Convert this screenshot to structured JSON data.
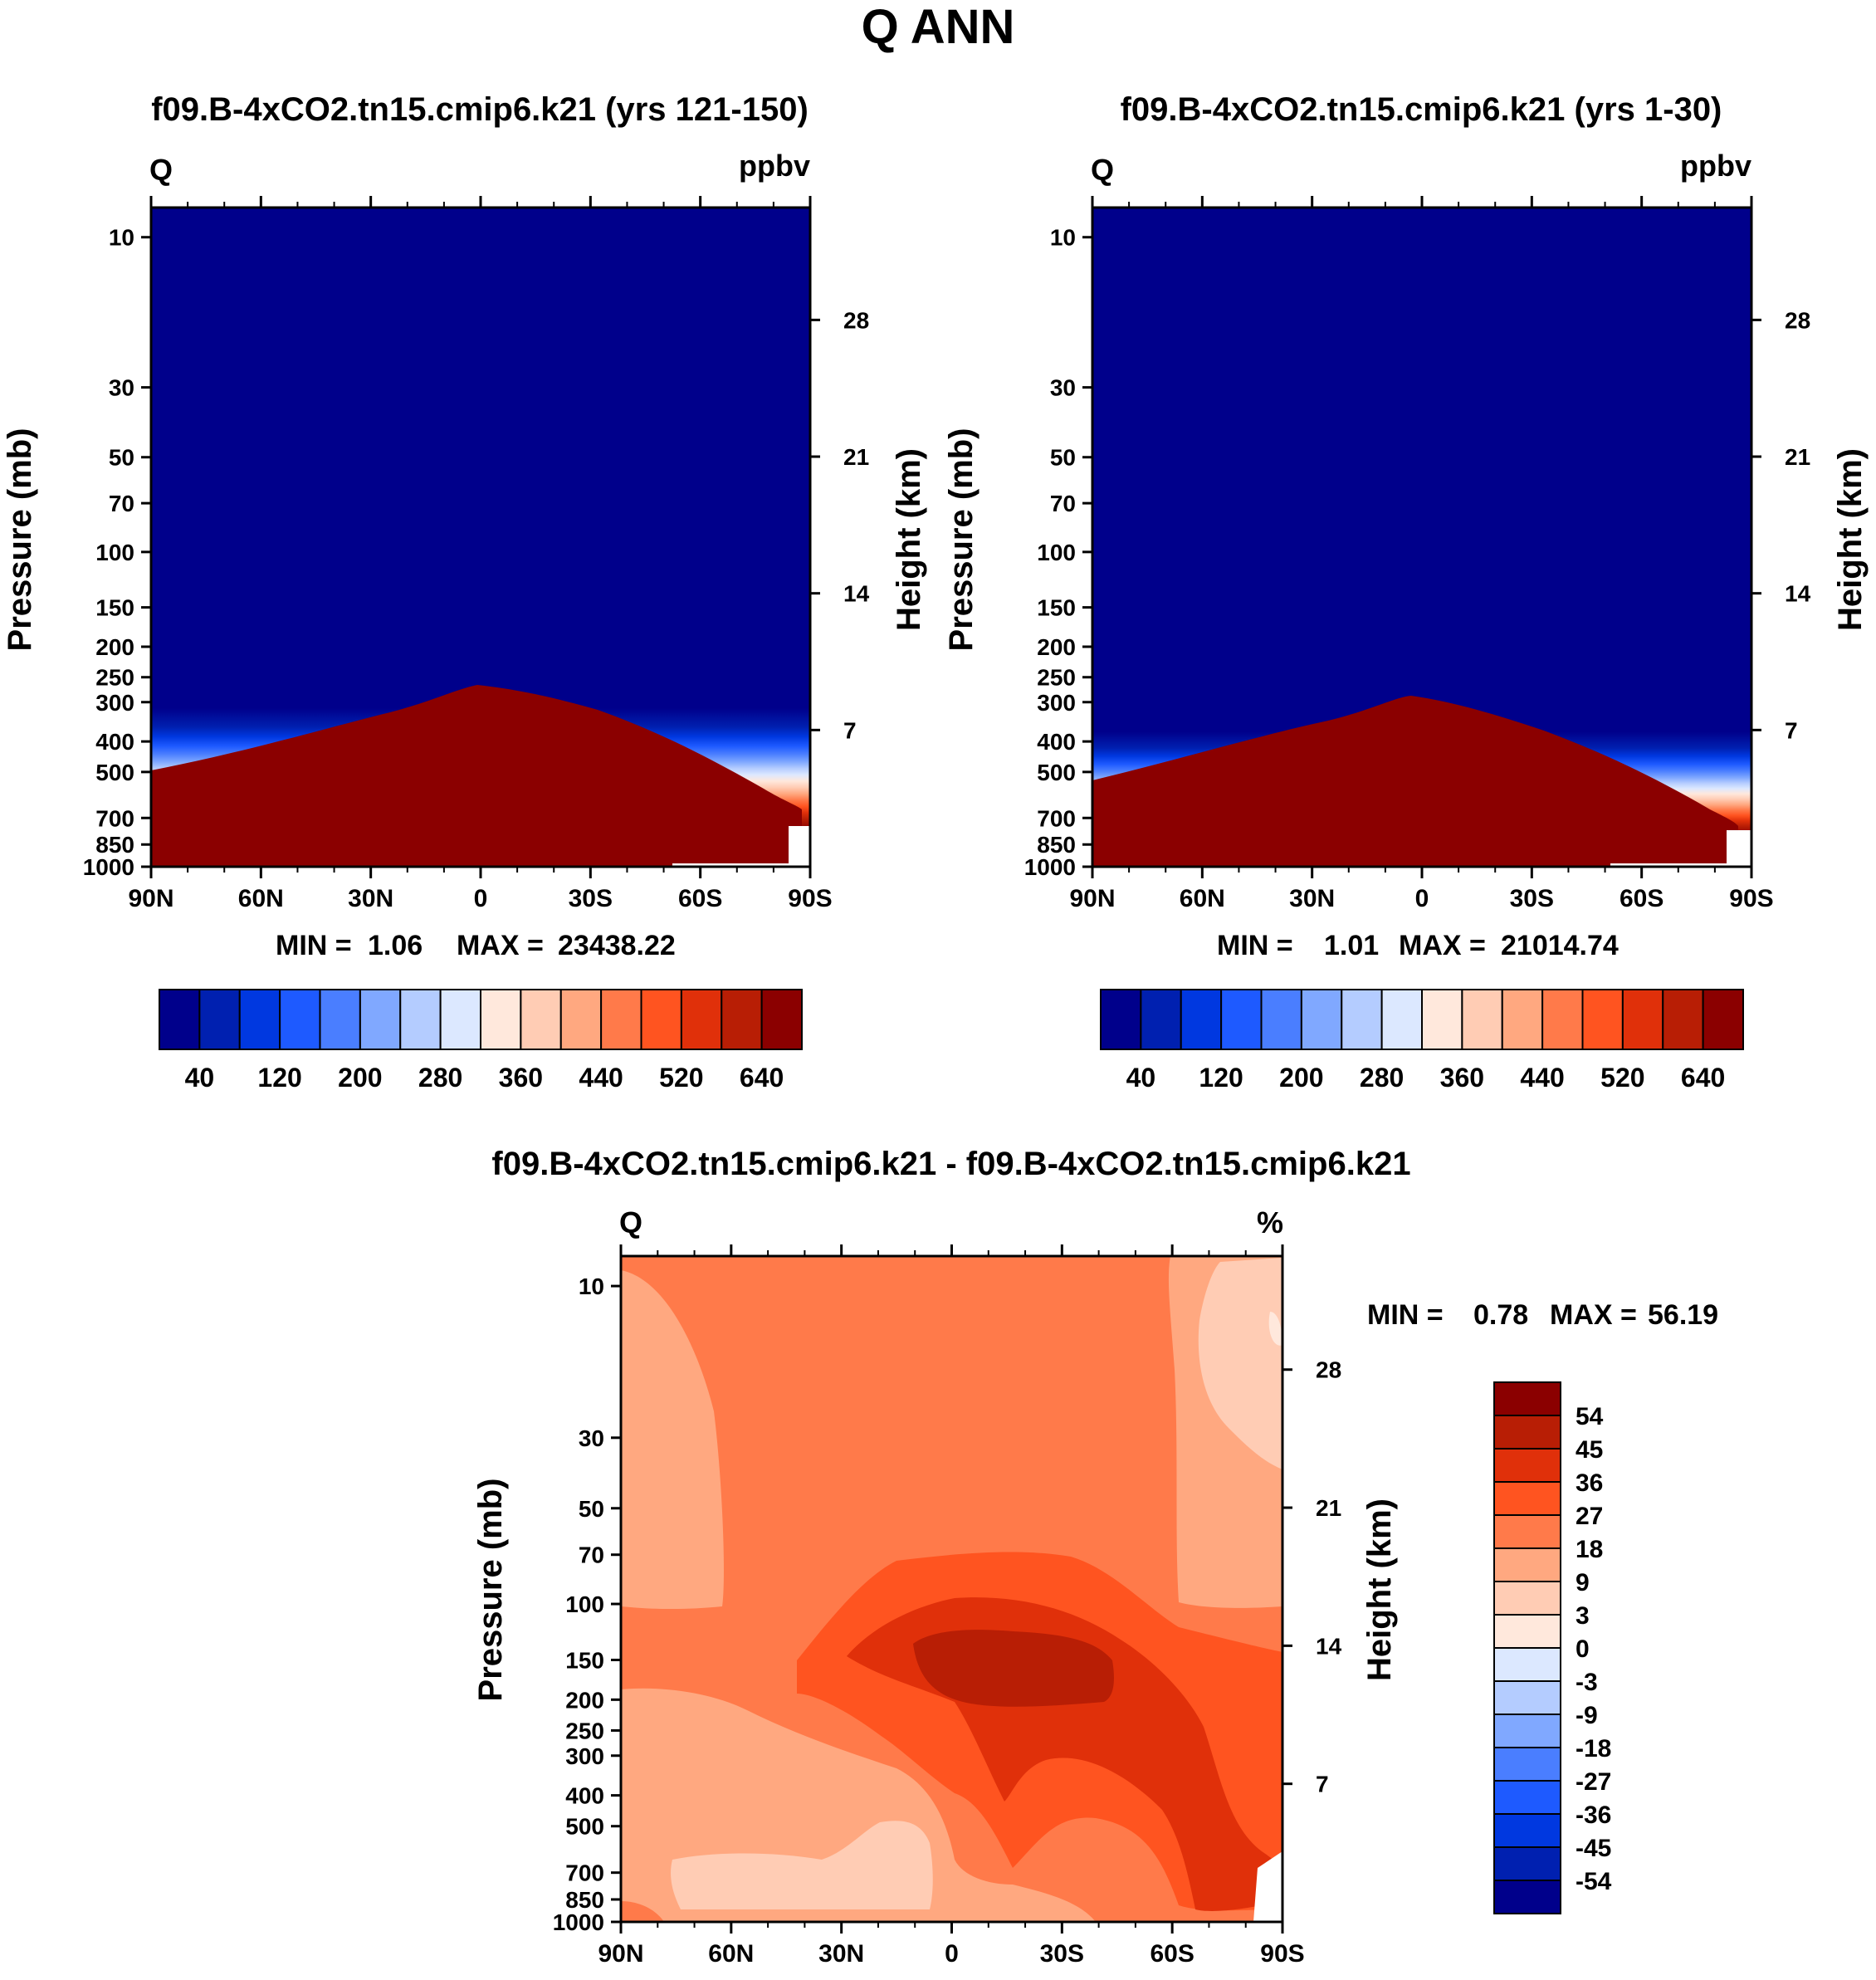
{
  "figure": {
    "title": "Q ANN",
    "diff_title": "f09.B-4xCO2.tn15.cmip6.k21 - f09.B-4xCO2.tn15.cmip6.k21"
  },
  "colors": {
    "abs_levels": [
      "#00008b",
      "#0020b0",
      "#0038e0",
      "#1e5aff",
      "#4a7eff",
      "#80a8ff",
      "#b4ccff",
      "#dce8ff",
      "#ffe8dc",
      "#ffccb4",
      "#ffa880",
      "#ff7a4a",
      "#ff5420",
      "#e0300a",
      "#b81e05",
      "#8b0000"
    ],
    "diff_levels": [
      "#8b0000",
      "#b81e05",
      "#e0300a",
      "#ff5420",
      "#ff7a4a",
      "#ffa880",
      "#ffccb4",
      "#ffe8dc",
      "#dce8ff",
      "#b4ccff",
      "#80a8ff",
      "#4a7eff",
      "#1e5aff",
      "#0038e0",
      "#0020b0",
      "#00008b"
    ]
  },
  "chart_data": [
    {
      "type": "heatmap",
      "title": "f09.B-4xCO2.tn15.cmip6.k21 (yrs 121-150)",
      "variable": "Q",
      "units": "ppbv",
      "xlabel": "",
      "ylabel": "Pressure (mb)",
      "ylabel_right": "Height (km)",
      "x_ticks": [
        "90N",
        "60N",
        "30N",
        "0",
        "30S",
        "60S",
        "90S"
      ],
      "pressure_ticks": [
        "10",
        "30",
        "50",
        "70",
        "100",
        "150",
        "200",
        "250",
        "300",
        "400",
        "500",
        "700",
        "850",
        "1000"
      ],
      "height_ticks": [
        "28",
        "21",
        "14",
        "7"
      ],
      "stats": {
        "min_label": "MIN =",
        "min": "1.06",
        "max_label": "MAX =",
        "max": "23438.22"
      },
      "colorbar_labels": [
        "40",
        "120",
        "200",
        "280",
        "360",
        "440",
        "520",
        "640"
      ],
      "tropopause_profile_mb": {
        "lat": [
          90,
          60,
          30,
          0,
          -30,
          -60,
          -90
        ],
        "p": [
          420,
          380,
          340,
          270,
          330,
          470,
          600
        ]
      }
    },
    {
      "type": "heatmap",
      "title": "f09.B-4xCO2.tn15.cmip6.k21 (yrs 1-30)",
      "variable": "Q",
      "units": "ppbv",
      "xlabel": "",
      "ylabel": "Pressure (mb)",
      "ylabel_right": "Height (km)",
      "x_ticks": [
        "90N",
        "60N",
        "30N",
        "0",
        "30S",
        "60S",
        "90S"
      ],
      "pressure_ticks": [
        "10",
        "30",
        "50",
        "70",
        "100",
        "150",
        "200",
        "250",
        "300",
        "400",
        "500",
        "700",
        "850",
        "1000"
      ],
      "height_ticks": [
        "28",
        "21",
        "14",
        "7"
      ],
      "stats": {
        "min_label": "MIN =",
        "min": "1.01",
        "max_label": "MAX =",
        "max": "21014.74"
      },
      "colorbar_labels": [
        "40",
        "120",
        "200",
        "280",
        "360",
        "440",
        "520",
        "640"
      ],
      "tropopause_profile_mb": {
        "lat": [
          90,
          60,
          30,
          0,
          -30,
          -60,
          -90
        ],
        "p": [
          440,
          400,
          360,
          290,
          350,
          500,
          620
        ]
      }
    },
    {
      "type": "heatmap",
      "title": "f09.B-4xCO2.tn15.cmip6.k21 - f09.B-4xCO2.tn15.cmip6.k21",
      "variable": "Q",
      "units": "%",
      "xlabel": "",
      "ylabel": "Pressure (mb)",
      "ylabel_right": "Height (km)",
      "x_ticks": [
        "90N",
        "60N",
        "30N",
        "0",
        "30S",
        "60S",
        "90S"
      ],
      "pressure_ticks": [
        "10",
        "30",
        "50",
        "70",
        "100",
        "150",
        "200",
        "250",
        "300",
        "400",
        "500",
        "700",
        "850",
        "1000"
      ],
      "height_ticks": [
        "28",
        "21",
        "14",
        "7"
      ],
      "stats": {
        "min_label": "MIN =",
        "min": "0.78",
        "max_label": "MAX =",
        "max": "56.19"
      },
      "colorbar_labels": [
        "54",
        "45",
        "36",
        "27",
        "18",
        "9",
        "3",
        "0",
        "-3",
        "-9",
        "-18",
        "-27",
        "-36",
        "-45",
        "-54"
      ]
    }
  ]
}
